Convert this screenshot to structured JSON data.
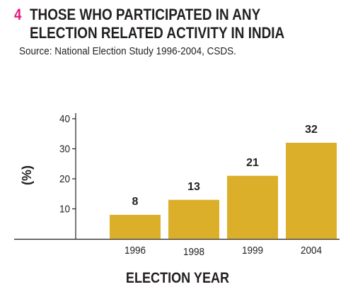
{
  "figure": {
    "number": "4",
    "title_line1": "THOSE WHO PARTICIPATED IN ANY",
    "title_line2": "ELECTION RELATED ACTIVITY IN INDIA",
    "source": "Source: National Election Study 1996-2004, CSDS."
  },
  "colors": {
    "number": "#e6177e",
    "bar": "#dcaf2a",
    "text": "#231f20",
    "axis": "#231f20"
  },
  "chart_data": {
    "type": "bar",
    "categories": [
      "1996",
      "1998",
      "1999",
      "2004"
    ],
    "values": [
      8,
      13,
      21,
      32
    ],
    "data_labels": [
      "8",
      "13",
      "21",
      "32"
    ],
    "title": "",
    "xlabel": "ELECTION YEAR",
    "ylabel": "(%)",
    "ylim": [
      0,
      40
    ],
    "yticks": [
      10,
      20,
      30,
      40
    ],
    "grid": false,
    "legend": "none"
  }
}
